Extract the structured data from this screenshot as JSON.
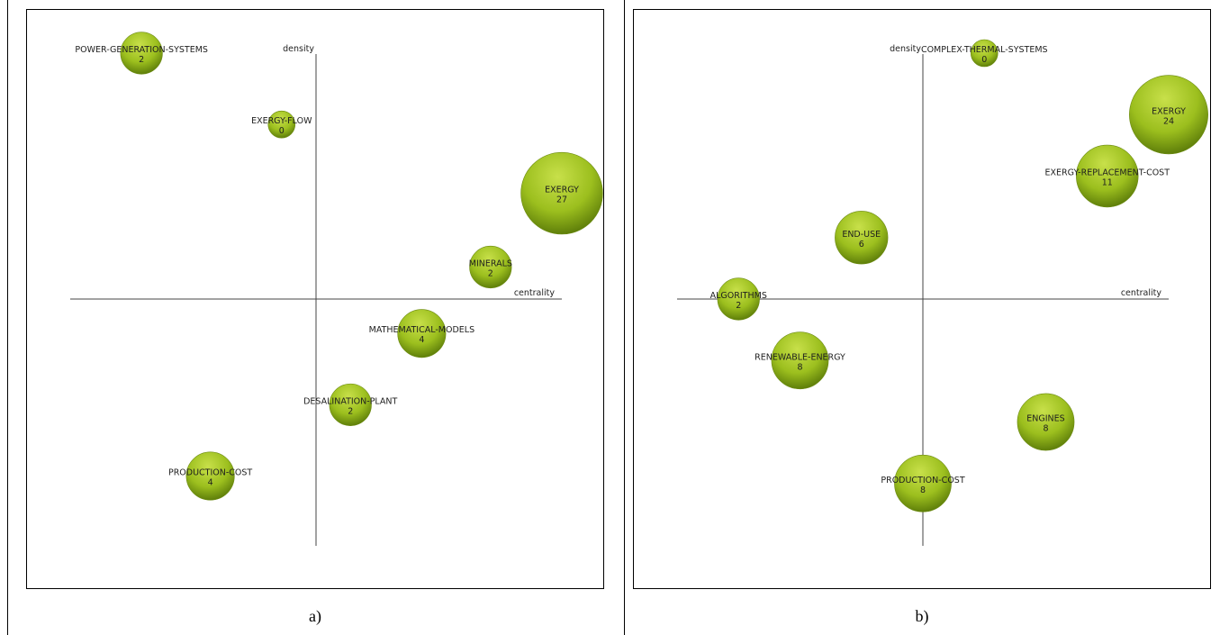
{
  "chart_data": [
    {
      "type": "scatter",
      "panel_caption": "a)",
      "xlabel": "centrality",
      "ylabel": "density",
      "points": [
        {
          "label": "POWER-GENERATION-SYSTEMS",
          "value": "2",
          "x": -0.71,
          "y": 1.0
        },
        {
          "label": "EXERGY-FLOW",
          "value": "0",
          "x": -0.14,
          "y": 0.71
        },
        {
          "label": "EXERGY",
          "value": "27",
          "x": 1.0,
          "y": 0.43
        },
        {
          "label": "MINERALS",
          "value": "2",
          "x": 0.71,
          "y": 0.13
        },
        {
          "label": "MATHEMATICAL-MODELS",
          "value": "4",
          "x": 0.43,
          "y": -0.14
        },
        {
          "label": "DESALINATION-PLANT",
          "value": "2",
          "x": 0.14,
          "y": -0.43
        },
        {
          "label": "PRODUCTION-COST",
          "value": "4",
          "x": -0.43,
          "y": -0.72
        }
      ]
    },
    {
      "type": "scatter",
      "panel_caption": "b)",
      "xlabel": "centrality",
      "ylabel": "density",
      "points": [
        {
          "label": "COMPLEX-THERMAL-SYSTEMS",
          "value": "0",
          "x": 0.25,
          "y": 1.0
        },
        {
          "label": "EXERGY",
          "value": "24",
          "x": 1.0,
          "y": 0.75
        },
        {
          "label": "EXERGY-REPLACEMENT-COST",
          "value": "11",
          "x": 0.75,
          "y": 0.5
        },
        {
          "label": "END-USE",
          "value": "6",
          "x": -0.25,
          "y": 0.25
        },
        {
          "label": "ALGORITHMS",
          "value": "2",
          "x": -0.75,
          "y": 0.0
        },
        {
          "label": "RENEWABLE-ENERGY",
          "value": "8",
          "x": -0.5,
          "y": -0.25
        },
        {
          "label": "ENGINES",
          "value": "8",
          "x": 0.5,
          "y": -0.5
        },
        {
          "label": "PRODUCTION-COST",
          "value": "8",
          "x": 0.0,
          "y": -0.75
        }
      ]
    }
  ],
  "colors": {
    "bubble_light": "#c8e04a",
    "bubble_mid": "#9cbf1e",
    "bubble_dark": "#5f7f0a"
  }
}
